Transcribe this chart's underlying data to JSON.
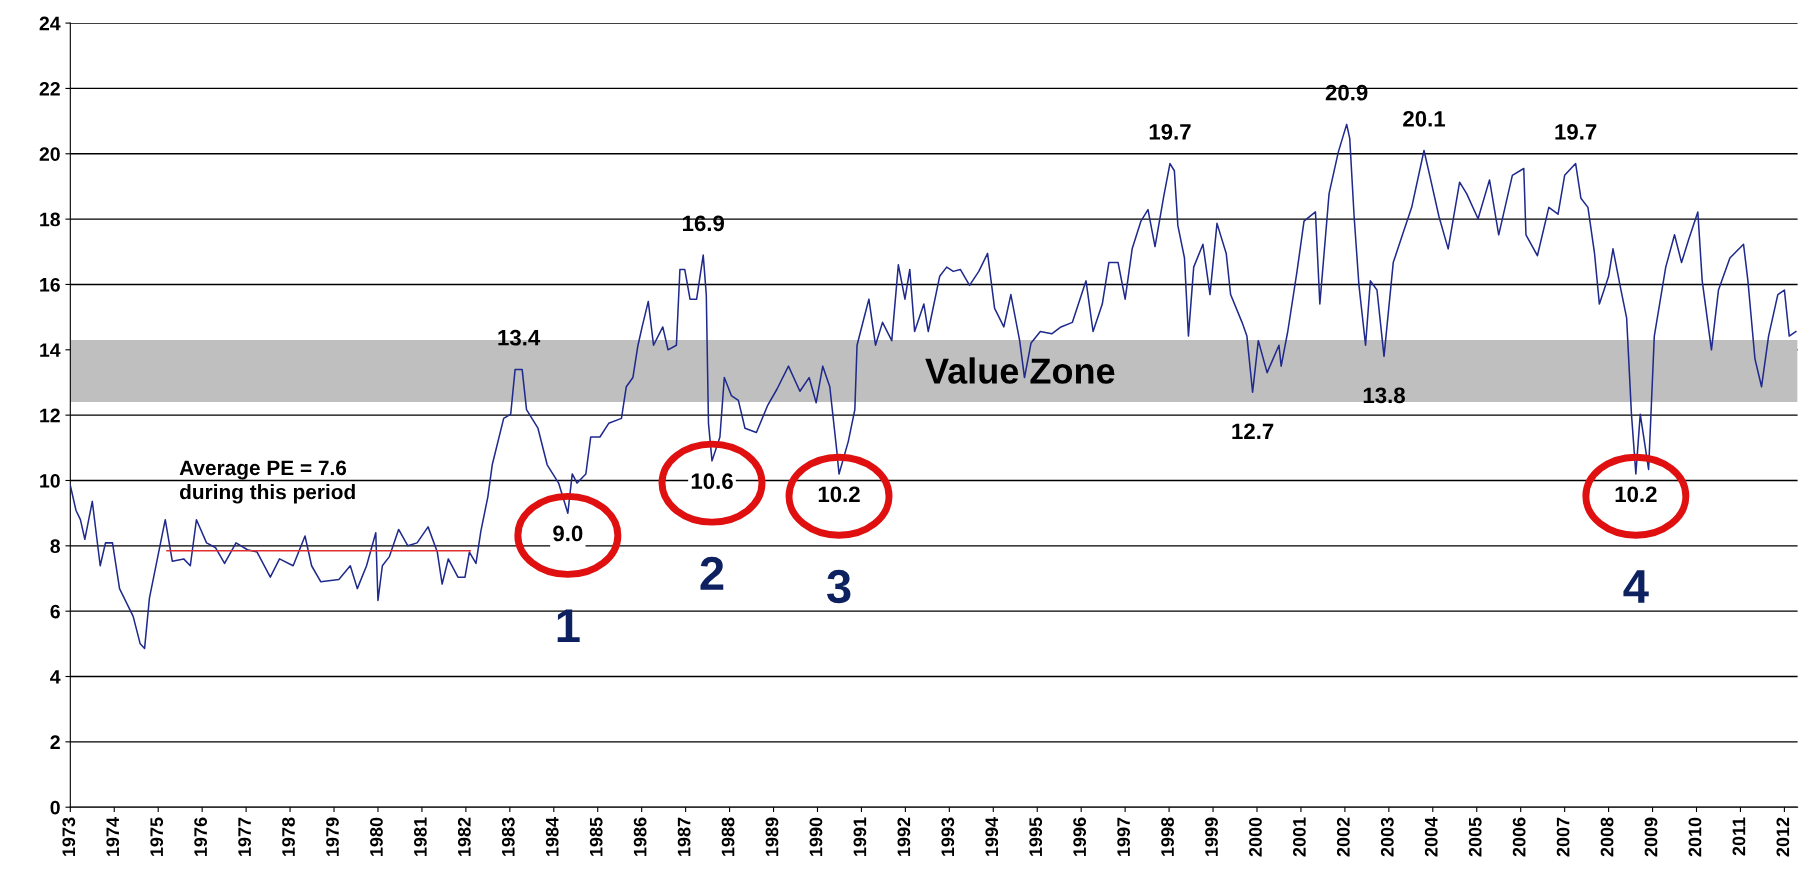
{
  "chart_data": {
    "type": "line",
    "xlim": [
      1973,
      2012.3
    ],
    "xticks": [
      1973,
      1974,
      1975,
      1976,
      1977,
      1978,
      1979,
      1980,
      1981,
      1982,
      1983,
      1984,
      1985,
      1986,
      1987,
      1988,
      1989,
      1990,
      1991,
      1992,
      1993,
      1994,
      1995,
      1996,
      1997,
      1998,
      1999,
      2000,
      2001,
      2002,
      2003,
      2004,
      2005,
      2006,
      2007,
      2008,
      2009,
      2010,
      2011,
      2012
    ],
    "ylim": [
      0,
      24
    ],
    "yticks": [
      0,
      2,
      4,
      6,
      8,
      10,
      12,
      14,
      16,
      18,
      20,
      22,
      24
    ],
    "grid": "y",
    "marker": "none",
    "line_style": "solid",
    "series": [
      {
        "color": "#1f2a8c",
        "x": [
          1973.0,
          1973.13,
          1973.23,
          1973.33,
          1973.5,
          1973.68,
          1973.8,
          1973.96,
          1974.12,
          1974.43,
          1974.59,
          1974.69,
          1974.8,
          1975.16,
          1975.32,
          1975.58,
          1975.73,
          1975.87,
          1976.1,
          1976.3,
          1976.51,
          1976.77,
          1977.03,
          1977.25,
          1977.55,
          1977.76,
          1978.07,
          1978.34,
          1978.49,
          1978.7,
          1979.11,
          1979.37,
          1979.53,
          1979.74,
          1979.95,
          1980.0,
          1980.1,
          1980.26,
          1980.47,
          1980.68,
          1980.89,
          1981.14,
          1981.35,
          1981.46,
          1981.6,
          1981.82,
          1981.98,
          1982.08,
          1982.23,
          1982.34,
          1982.5,
          1982.6,
          1982.86,
          1983.02,
          1983.12,
          1983.28,
          1983.38,
          1983.64,
          1983.85,
          1984.11,
          1984.32,
          1984.42,
          1984.53,
          1984.73,
          1984.84,
          1985.05,
          1985.25,
          1985.54,
          1985.65,
          1985.8,
          1985.91,
          1986.01,
          1986.15,
          1986.27,
          1986.48,
          1986.6,
          1986.79,
          1986.87,
          1986.98,
          1987.1,
          1987.25,
          1987.4,
          1987.47,
          1987.52,
          1987.6,
          1987.78,
          1987.88,
          1988.04,
          1988.2,
          1988.35,
          1988.61,
          1988.87,
          1989.08,
          1989.34,
          1989.6,
          1989.81,
          1989.97,
          1990.12,
          1990.28,
          1990.44,
          1990.49,
          1990.7,
          1990.85,
          1990.9,
          1991.06,
          1991.17,
          1991.32,
          1991.48,
          1991.69,
          1991.84,
          1991.99,
          1992.1,
          1992.21,
          1992.42,
          1992.52,
          1992.78,
          1992.94,
          1993.09,
          1993.25,
          1993.46,
          1993.67,
          1993.87,
          1994.03,
          1994.24,
          1994.4,
          1994.6,
          1994.71,
          1994.86,
          1995.07,
          1995.33,
          1995.54,
          1995.8,
          1996.11,
          1996.27,
          1996.48,
          1996.63,
          1996.84,
          1997.0,
          1997.16,
          1997.36,
          1997.52,
          1997.68,
          1997.88,
          1998.02,
          1998.12,
          1998.2,
          1998.35,
          1998.44,
          1998.56,
          1998.77,
          1998.93,
          1999.09,
          1999.3,
          1999.4,
          1999.66,
          1999.77,
          1999.9,
          2000.03,
          2000.23,
          2000.5,
          2000.55,
          2000.7,
          2000.91,
          2001.07,
          2001.33,
          2001.43,
          2001.64,
          2001.85,
          2002.04,
          2002.11,
          2002.21,
          2002.32,
          2002.47,
          2002.58,
          2002.73,
          2002.89,
          2003.1,
          2003.31,
          2003.52,
          2003.8,
          2003.93,
          2004.14,
          2004.35,
          2004.61,
          2004.77,
          2005.03,
          2005.29,
          2005.5,
          2005.81,
          2006.07,
          2006.12,
          2006.38,
          2006.64,
          2006.85,
          2007.0,
          2007.25,
          2007.37,
          2007.53,
          2007.68,
          2007.79,
          2008.0,
          2008.1,
          2008.26,
          2008.41,
          2008.52,
          2008.62,
          2008.72,
          2008.91,
          2009.04,
          2009.3,
          2009.5,
          2009.66,
          2009.82,
          2010.03,
          2010.13,
          2010.34,
          2010.5,
          2010.76,
          2011.07,
          2011.17,
          2011.33,
          2011.48,
          2011.64,
          2011.85,
          2012.0,
          2012.11,
          2012.26
        ],
        "values": [
          9.85,
          9.08,
          8.8,
          8.2,
          9.36,
          7.39,
          8.09,
          8.09,
          6.69,
          5.84,
          5.0,
          4.86,
          6.4,
          8.8,
          7.53,
          7.6,
          7.39,
          8.8,
          8.09,
          7.95,
          7.46,
          8.09,
          7.88,
          7.81,
          7.04,
          7.6,
          7.39,
          8.3,
          7.39,
          6.9,
          6.97,
          7.39,
          6.69,
          7.39,
          8.4,
          6.33,
          7.39,
          7.67,
          8.5,
          8.0,
          8.09,
          8.58,
          7.81,
          6.83,
          7.6,
          7.04,
          7.04,
          7.81,
          7.46,
          8.44,
          9.5,
          10.48,
          11.9,
          12.03,
          13.4,
          13.4,
          12.17,
          11.6,
          10.48,
          9.92,
          9.0,
          10.2,
          9.92,
          10.2,
          11.33,
          11.33,
          11.75,
          11.9,
          12.87,
          13.15,
          14.1,
          14.7,
          15.48,
          14.14,
          14.7,
          14.0,
          14.14,
          16.46,
          16.46,
          15.55,
          15.55,
          16.9,
          15.69,
          11.75,
          10.6,
          11.33,
          13.15,
          12.6,
          12.45,
          11.6,
          11.47,
          12.31,
          12.8,
          13.5,
          12.73,
          13.15,
          12.38,
          13.5,
          12.87,
          10.9,
          10.2,
          11.19,
          12.17,
          14.14,
          14.98,
          15.55,
          14.14,
          14.84,
          14.28,
          16.6,
          15.55,
          16.46,
          14.56,
          15.4,
          14.56,
          16.25,
          16.53,
          16.4,
          16.46,
          15.97,
          16.4,
          16.95,
          15.27,
          14.7,
          15.69,
          14.28,
          13.15,
          14.21,
          14.56,
          14.49,
          14.7,
          14.84,
          16.11,
          14.56,
          15.4,
          16.67,
          16.67,
          15.55,
          17.09,
          17.94,
          18.29,
          17.16,
          18.71,
          19.7,
          19.48,
          17.8,
          16.81,
          14.42,
          16.53,
          17.23,
          15.69,
          17.87,
          16.95,
          15.69,
          14.84,
          14.42,
          12.7,
          14.28,
          13.3,
          14.14,
          13.5,
          14.56,
          16.39,
          17.94,
          18.22,
          15.4,
          18.78,
          20.05,
          20.9,
          20.47,
          18.08,
          15.97,
          14.14,
          16.11,
          15.83,
          13.8,
          16.67,
          17.52,
          18.36,
          20.1,
          19.34,
          18.08,
          17.09,
          19.13,
          18.78,
          18.01,
          19.2,
          17.52,
          19.34,
          19.55,
          17.52,
          16.88,
          18.36,
          18.15,
          19.34,
          19.7,
          18.64,
          18.36,
          16.95,
          15.4,
          16.25,
          17.09,
          15.97,
          14.98,
          12.03,
          10.2,
          12.03,
          10.34,
          14.42,
          16.53,
          17.52,
          16.67,
          17.37,
          18.22,
          16.11,
          14.0,
          15.83,
          16.81,
          17.23,
          16.11,
          13.72,
          12.87,
          14.42,
          15.69,
          15.83,
          14.42,
          14.56
        ]
      },
      {
        "color": "#e03030",
        "x": [
          1975.2,
          1982.1
        ],
        "values": [
          7.85,
          7.85
        ]
      }
    ],
    "bands": [
      {
        "axis": "y",
        "from": 12.4,
        "to": 14.3,
        "label": "Value Zone",
        "color": "#bfbfbf"
      }
    ],
    "annotations": [
      "Average PE = 7.6\nduring this period",
      {
        "text": "13.4",
        "x": 1983.2,
        "y": 13.4
      },
      {
        "text": "9.0",
        "x": 1984.32,
        "y": 9.0
      },
      {
        "text": "1",
        "x": 1984.32,
        "y": 9.0
      },
      {
        "text": "16.9",
        "x": 1987.4,
        "y": 16.9
      },
      {
        "text": "10.6",
        "x": 1987.6,
        "y": 10.6
      },
      {
        "text": "2",
        "x": 1987.6,
        "y": 10.6
      },
      {
        "text": "10.2",
        "x": 1990.49,
        "y": 10.2
      },
      {
        "text": "3",
        "x": 1990.49,
        "y": 10.2
      },
      {
        "text": "19.7",
        "x": 1998.02,
        "y": 19.7
      },
      {
        "text": "12.7",
        "x": 1999.9,
        "y": 12.7
      },
      {
        "text": "20.9",
        "x": 2002.04,
        "y": 20.9
      },
      {
        "text": "13.8",
        "x": 2002.89,
        "y": 13.8
      },
      {
        "text": "20.1",
        "x": 2003.8,
        "y": 20.1
      },
      {
        "text": "19.7",
        "x": 2007.25,
        "y": 19.7
      },
      {
        "text": "10.2",
        "x": 2008.62,
        "y": 10.2
      },
      {
        "text": "4",
        "x": 2008.62,
        "y": 10.2
      }
    ]
  }
}
